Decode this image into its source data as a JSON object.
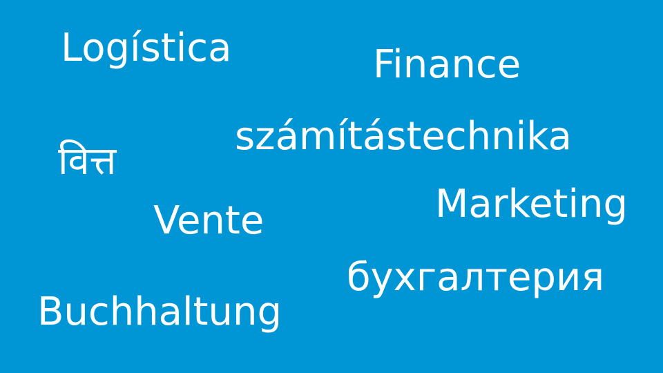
{
  "background_color": "#0096d6",
  "text_color": "#ffffff",
  "words": {
    "logistica": "Logística",
    "finance": "Finance",
    "szamitastechnika": "számítástechnika",
    "vitt": "वित्त",
    "marketing": "Marketing",
    "vente": "Vente",
    "bukhgalteriya": "бухгалтерия",
    "buchhaltung": "Buchhaltung"
  }
}
